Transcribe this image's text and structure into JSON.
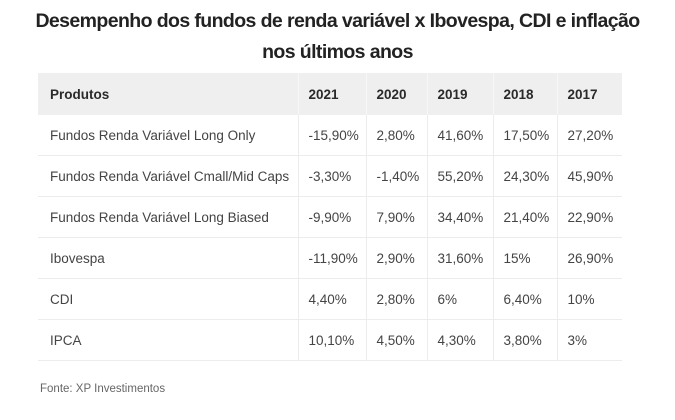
{
  "title": {
    "line1": "Desempenho dos fundos de renda variável x Ibovespa, CDI e inflação",
    "line2": "nos últimos anos"
  },
  "table": {
    "headers": [
      "Produtos",
      "2021",
      "2020",
      "2019",
      "2018",
      "2017"
    ],
    "rows": [
      [
        "Fundos Renda Variável Long Only",
        "-15,90%",
        "2,80%",
        "41,60%",
        "17,50%",
        "27,20%"
      ],
      [
        "Fundos Renda Variável Cmall/Mid Caps",
        "-3,30%",
        "-1,40%",
        "55,20%",
        "24,30%",
        "45,90%"
      ],
      [
        "Fundos Renda Variável Long Biased",
        "-9,90%",
        "7,90%",
        "34,40%",
        "21,40%",
        "22,90%"
      ],
      [
        "Ibovespa",
        "-11,90%",
        "2,90%",
        "31,60%",
        "15%",
        "26,90%"
      ],
      [
        "CDI",
        "4,40%",
        "2,80%",
        "6%",
        "6,40%",
        "10%"
      ],
      [
        "IPCA",
        "10,10%",
        "4,50%",
        "4,30%",
        "3,80%",
        "3%"
      ]
    ]
  },
  "source": "Fonte: XP Investimentos",
  "colors": {
    "header_bg": "#efefef",
    "border": "#ececec",
    "text": "#444444",
    "title": "#222222"
  }
}
